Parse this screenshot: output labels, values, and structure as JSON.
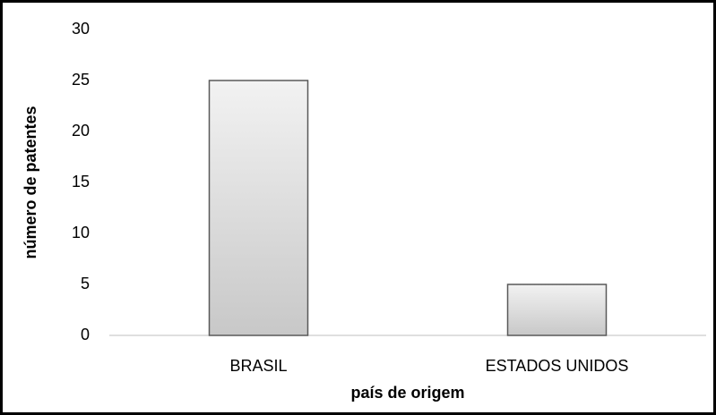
{
  "chart_data": {
    "type": "bar",
    "categories": [
      "BRASIL",
      "ESTADOS UNIDOS"
    ],
    "values": [
      25,
      5
    ],
    "color": "#c8c8c8",
    "x_label": "país de origem",
    "y_label": "número de patentes",
    "ylim": [
      0,
      30
    ],
    "yticks": [
      0,
      5,
      10,
      15,
      20,
      25,
      30
    ],
    "grid": false
  }
}
